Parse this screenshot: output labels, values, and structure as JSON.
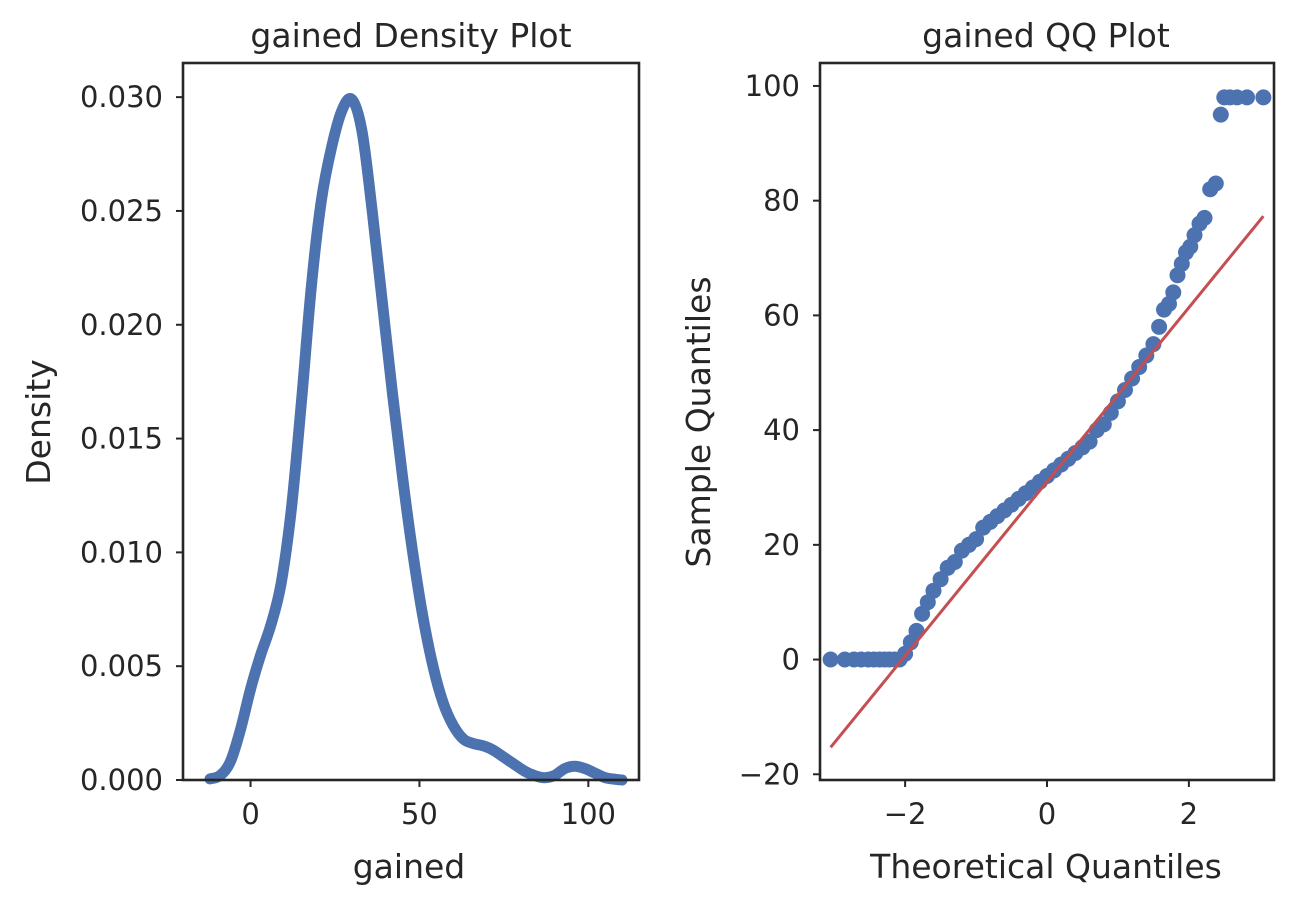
{
  "figure": {
    "background": "#ffffff"
  },
  "chart_data": [
    {
      "type": "line",
      "title": "gained Density Plot",
      "xlabel": "gained",
      "ylabel": "Density",
      "xlim": [
        -20,
        115
      ],
      "ylim": [
        0,
        0.0315
      ],
      "grid": false,
      "xticks": [
        0,
        50,
        100
      ],
      "xtick_labels": [
        "0",
        "50",
        "100"
      ],
      "yticks": [
        0,
        0.005,
        0.01,
        0.015,
        0.02,
        0.025,
        0.03
      ],
      "ytick_labels": [
        "0.000",
        "0.005",
        "0.010",
        "0.015",
        "0.020",
        "0.025",
        "0.030"
      ],
      "color": "#4c72b0",
      "series": [
        {
          "x": [
            -12,
            -9,
            -6,
            -3,
            0,
            3,
            6,
            9,
            12,
            15,
            18,
            21,
            24,
            27,
            30,
            33,
            36,
            39,
            42,
            45,
            48,
            51,
            54,
            57,
            60,
            63,
            66,
            69,
            72,
            75,
            78,
            81,
            84,
            87,
            90,
            93,
            96,
            99,
            102,
            105,
            108,
            110
          ],
          "y": [
            5e-05,
            0.0002,
            0.0008,
            0.0022,
            0.004,
            0.0055,
            0.0068,
            0.0086,
            0.0118,
            0.0165,
            0.0217,
            0.0255,
            0.0278,
            0.0294,
            0.0299,
            0.0285,
            0.025,
            0.021,
            0.017,
            0.0133,
            0.01,
            0.0072,
            0.005,
            0.0034,
            0.0024,
            0.0018,
            0.0016,
            0.0015,
            0.0013,
            0.001,
            0.0007,
            0.0004,
            0.0002,
            0.0001,
            0.0002,
            0.0005,
            0.0006,
            0.0005,
            0.0003,
            0.0001,
            3e-05,
            0.0
          ]
        }
      ]
    },
    {
      "type": "scatter",
      "title": "gained QQ Plot",
      "xlabel": "Theoretical Quantiles",
      "ylabel": "Sample Quantiles",
      "xlim": [
        -3.2,
        3.2
      ],
      "ylim": [
        -21,
        104
      ],
      "grid": false,
      "xticks": [
        -2,
        0,
        2
      ],
      "xtick_labels": [
        "−2",
        "0",
        "2"
      ],
      "yticks": [
        -20,
        0,
        20,
        40,
        60,
        80,
        100
      ],
      "ytick_labels": [
        "−20",
        "0",
        "20",
        "40",
        "60",
        "80",
        "100"
      ],
      "point_color": "#4c72b0",
      "line_color": "#c44e52",
      "points": {
        "x": [
          -3.05,
          -2.85,
          -2.72,
          -2.62,
          -2.52,
          -2.44,
          -2.36,
          -2.29,
          -2.22,
          -2.15,
          -2.08,
          -2.0,
          -1.92,
          -1.84,
          -1.76,
          -1.68,
          -1.6,
          -1.5,
          -1.4,
          -1.3,
          -1.2,
          -1.1,
          -1.0,
          -0.9,
          -0.8,
          -0.7,
          -0.6,
          -0.5,
          -0.4,
          -0.3,
          -0.2,
          -0.1,
          0.0,
          0.1,
          0.2,
          0.3,
          0.4,
          0.5,
          0.6,
          0.7,
          0.8,
          0.9,
          1.0,
          1.1,
          1.2,
          1.3,
          1.4,
          1.5,
          1.58,
          1.65,
          1.72,
          1.78,
          1.84,
          1.9,
          1.96,
          2.02,
          2.08,
          2.15,
          2.22,
          2.3,
          2.38,
          2.45,
          2.5,
          2.58,
          2.68,
          2.82,
          3.05
        ],
        "y": [
          0,
          0,
          0,
          0,
          0,
          0,
          0,
          0,
          0,
          0,
          0,
          1,
          3,
          5,
          8,
          10,
          12,
          14,
          16,
          17,
          19,
          20,
          21,
          23,
          24,
          25,
          26,
          27,
          28,
          29,
          30,
          31,
          32,
          33,
          34,
          35,
          36,
          37,
          38,
          40,
          41,
          43,
          45,
          47,
          49,
          51,
          53,
          55,
          58,
          61,
          62,
          64,
          67,
          69,
          71,
          72,
          74,
          76,
          77,
          82,
          83,
          95,
          98,
          98,
          98,
          98,
          98
        ]
      },
      "reference_line": {
        "x": [
          -3.05,
          3.05
        ],
        "y": [
          -15.3,
          77.3
        ]
      }
    }
  ]
}
